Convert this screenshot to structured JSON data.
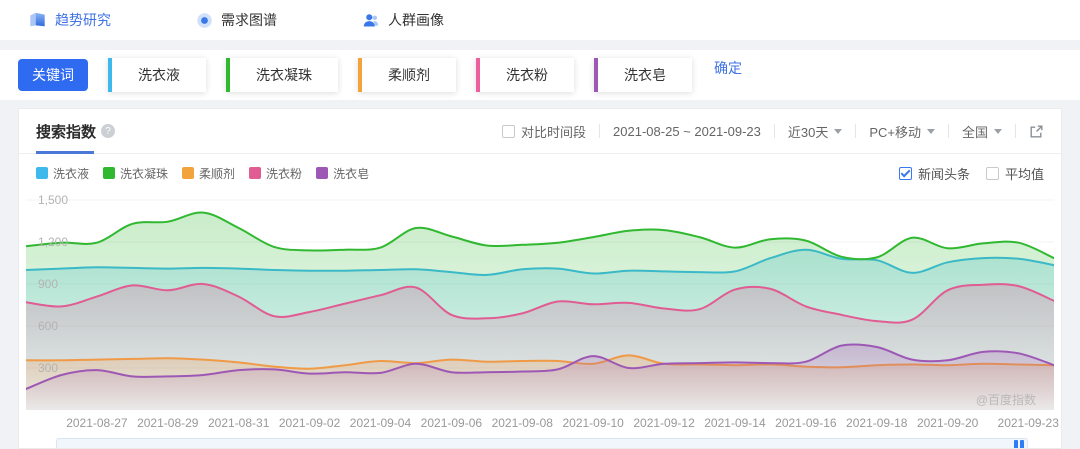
{
  "nav": {
    "items": [
      {
        "label": "趋势研究",
        "active": true
      },
      {
        "label": "需求图谱",
        "active": false
      },
      {
        "label": "人群画像",
        "active": false
      }
    ]
  },
  "keyword_bar": {
    "keyword_button": "关键词",
    "chips": [
      {
        "label": "洗衣液",
        "color": "#3db9ec"
      },
      {
        "label": "洗衣凝珠",
        "color": "#30b830"
      },
      {
        "label": "柔顺剂",
        "color": "#f2a33c"
      },
      {
        "label": "洗衣粉",
        "color": "#ee5f9d"
      },
      {
        "label": "洗衣皂",
        "color": "#9d58b5"
      }
    ],
    "confirm_label": "确定"
  },
  "panel": {
    "title": "搜索指数",
    "compare_label": "对比时间段",
    "date_range": "2021-08-25 ~ 2021-09-23",
    "time_select": "近30天",
    "platform_select": "PC+移动",
    "region_select": "全国",
    "news_toggle": "新闻头条",
    "news_checked": true,
    "average_toggle": "平均值",
    "average_checked": false,
    "watermark": "@百度指数"
  },
  "chart_data": {
    "type": "area",
    "title": "搜索指数",
    "ylim": [
      0,
      1500
    ],
    "grid": true,
    "legend_position": "top-left",
    "yticks": [
      {
        "value": 300,
        "label": "300"
      },
      {
        "value": 600,
        "label": "600"
      },
      {
        "value": 900,
        "label": "900"
      },
      {
        "value": 1200,
        "label": "1,200"
      },
      {
        "value": 1500,
        "label": "1,500"
      }
    ],
    "x": [
      "2021-08-25",
      "2021-08-26",
      "2021-08-27",
      "2021-08-28",
      "2021-08-29",
      "2021-08-30",
      "2021-08-31",
      "2021-09-01",
      "2021-09-02",
      "2021-09-03",
      "2021-09-04",
      "2021-09-05",
      "2021-09-06",
      "2021-09-07",
      "2021-09-08",
      "2021-09-09",
      "2021-09-10",
      "2021-09-11",
      "2021-09-12",
      "2021-09-13",
      "2021-09-14",
      "2021-09-15",
      "2021-09-16",
      "2021-09-17",
      "2021-09-18",
      "2021-09-19",
      "2021-09-20",
      "2021-09-21",
      "2021-09-22",
      "2021-09-23"
    ],
    "xtick_indices": [
      2,
      4,
      6,
      8,
      10,
      12,
      14,
      16,
      18,
      20,
      22,
      24,
      26,
      29
    ],
    "series": [
      {
        "name": "洗衣液",
        "color": "#3db9ec",
        "values": [
          1000,
          1010,
          1020,
          1015,
          1010,
          1015,
          1010,
          1000,
          995,
          995,
          1000,
          1005,
          985,
          965,
          1005,
          1010,
          975,
          995,
          990,
          985,
          990,
          1085,
          1145,
          1080,
          1070,
          980,
          1055,
          1085,
          1080,
          1035
        ]
      },
      {
        "name": "洗衣凝珠",
        "color": "#30b830",
        "values": [
          1170,
          1195,
          1195,
          1330,
          1345,
          1410,
          1300,
          1165,
          1140,
          1145,
          1160,
          1300,
          1240,
          1175,
          1180,
          1195,
          1235,
          1280,
          1285,
          1235,
          1160,
          1220,
          1210,
          1095,
          1090,
          1230,
          1155,
          1190,
          1195,
          1085
        ]
      },
      {
        "name": "柔顺剂",
        "color": "#f2a33c",
        "values": [
          355,
          355,
          360,
          365,
          370,
          360,
          340,
          310,
          295,
          320,
          350,
          335,
          360,
          345,
          350,
          350,
          330,
          390,
          330,
          325,
          320,
          325,
          310,
          305,
          320,
          325,
          320,
          330,
          325,
          320
        ]
      },
      {
        "name": "洗衣粉",
        "color": "#e05c93",
        "values": [
          770,
          740,
          810,
          890,
          855,
          900,
          810,
          670,
          700,
          760,
          820,
          875,
          680,
          655,
          690,
          775,
          755,
          765,
          725,
          720,
          860,
          865,
          740,
          680,
          635,
          645,
          855,
          895,
          885,
          780
        ]
      },
      {
        "name": "洗衣皂",
        "color": "#9d58b5",
        "values": [
          150,
          250,
          285,
          240,
          240,
          250,
          285,
          290,
          260,
          270,
          265,
          330,
          270,
          270,
          275,
          290,
          385,
          300,
          330,
          335,
          340,
          335,
          345,
          460,
          450,
          360,
          355,
          415,
          405,
          320
        ]
      }
    ]
  }
}
